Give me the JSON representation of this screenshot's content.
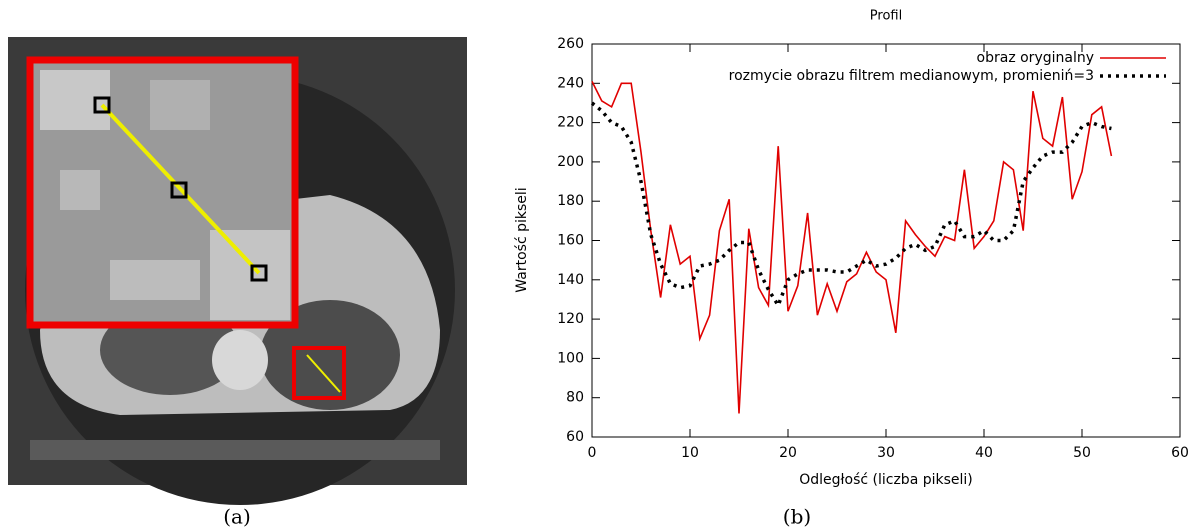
{
  "captions": [
    "(a)",
    "(b)"
  ],
  "chart_data": {
    "type": "line",
    "title": "Profil",
    "xlabel": "Odległość (liczba pikseli)",
    "ylabel": "Wartość pikseli",
    "x": [
      0,
      1,
      2,
      3,
      4,
      5,
      6,
      7,
      8,
      9,
      10,
      11,
      12,
      13,
      14,
      15,
      16,
      17,
      18,
      19,
      20,
      21,
      22,
      23,
      24,
      25,
      26,
      27,
      28,
      29,
      30,
      31,
      32,
      33,
      34,
      35,
      36,
      37,
      38,
      39,
      40,
      41,
      42,
      43,
      44,
      45,
      46,
      47,
      48,
      49,
      50,
      51,
      52,
      53
    ],
    "series": [
      {
        "name": "obraz oryginalny",
        "color": "#e00000",
        "style": "solid",
        "values": [
          241,
          231,
          228,
          240,
          240,
          205,
          165,
          131,
          168,
          148,
          152,
          110,
          122,
          165,
          181,
          72,
          166,
          136,
          127,
          208,
          124,
          137,
          174,
          122,
          138,
          124,
          139,
          143,
          154,
          144,
          140,
          113,
          170,
          163,
          157,
          152,
          162,
          160,
          196,
          156,
          162,
          170,
          200,
          196,
          165,
          236,
          212,
          208,
          233,
          181,
          195,
          224,
          228,
          203
        ]
      },
      {
        "name": "rozmycie obrazu filtrem medianowym, promieniń=3",
        "color": "#000000",
        "style": "dotted",
        "values": [
          230,
          226,
          220,
          218,
          210,
          190,
          163,
          148,
          138,
          136,
          137,
          147,
          148,
          150,
          155,
          159,
          159,
          145,
          135,
          127,
          140,
          143,
          145,
          145,
          145,
          144,
          144,
          147,
          150,
          147,
          148,
          151,
          156,
          158,
          155,
          157,
          168,
          170,
          162,
          162,
          165,
          160,
          160,
          165,
          190,
          197,
          203,
          205,
          205,
          210,
          218,
          220,
          218,
          217
        ]
      }
    ],
    "xlim": [
      0,
      60
    ],
    "xticks": [
      0,
      10,
      20,
      30,
      40,
      50,
      60
    ],
    "ylim": [
      60,
      260
    ],
    "yticks": [
      60,
      80,
      100,
      120,
      140,
      160,
      180,
      200,
      220,
      240,
      260
    ],
    "legend": "top-right"
  }
}
